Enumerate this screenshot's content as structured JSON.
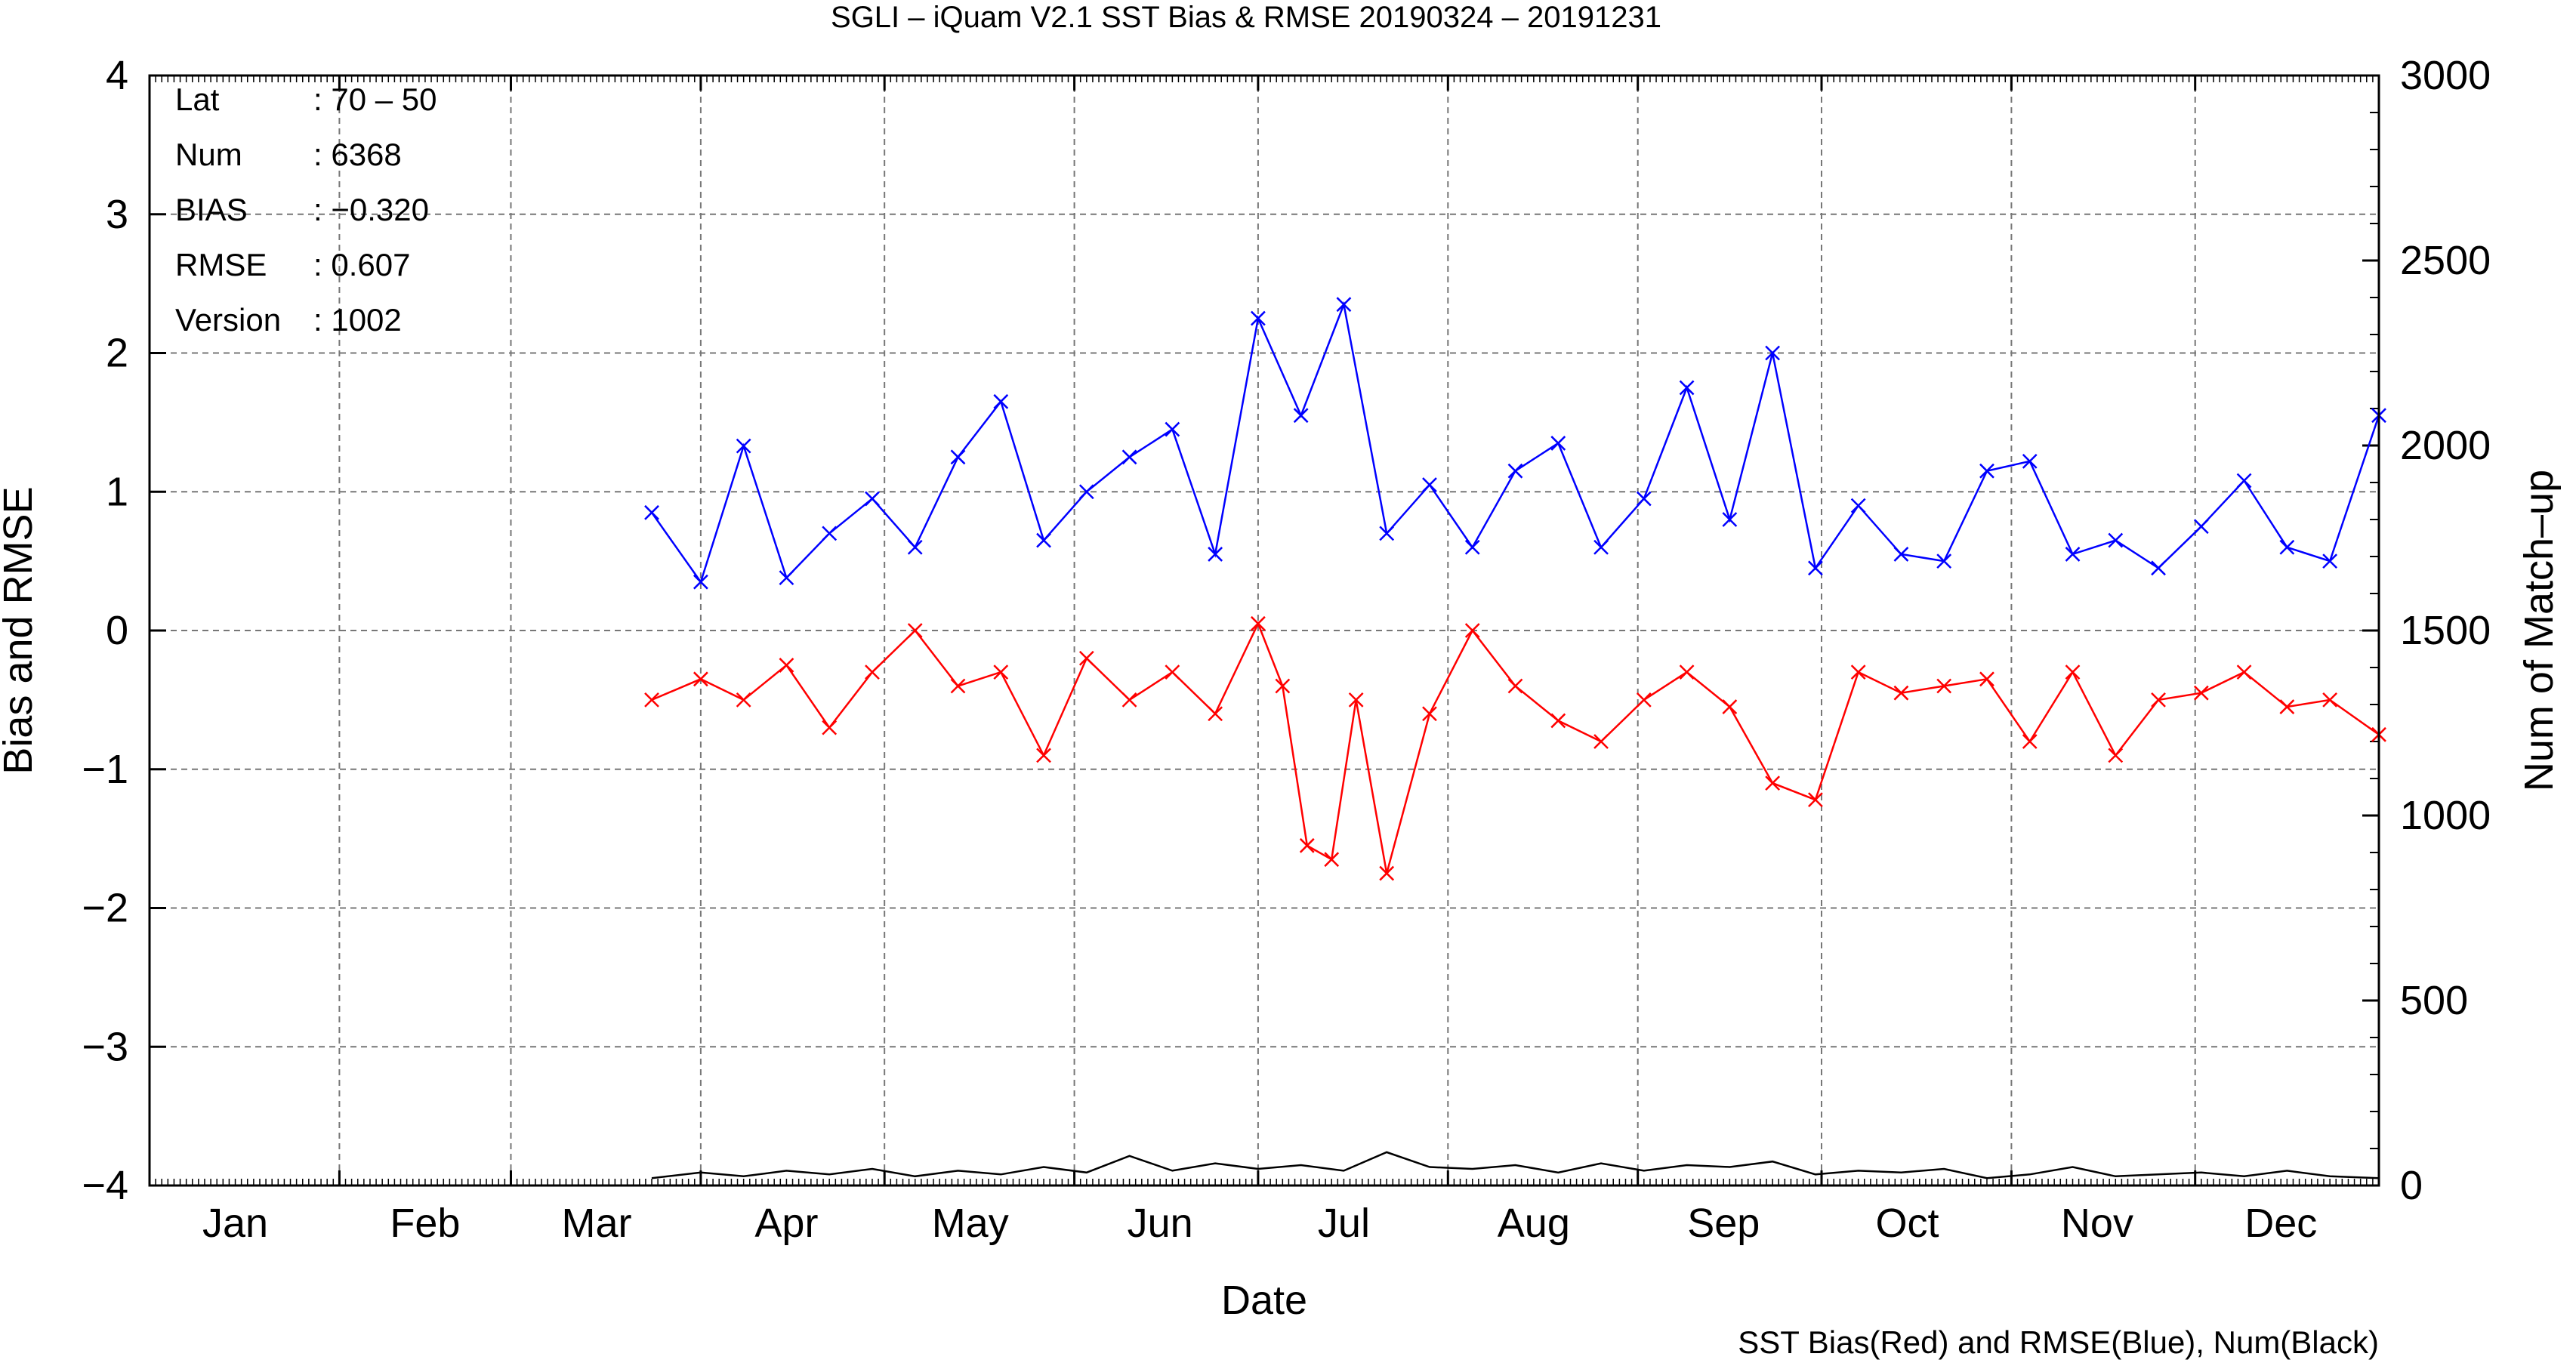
{
  "chart_data": {
    "type": "line",
    "title": "SGLI – iQuam V2.1 SST Bias & RMSE 20190324 – 20191231",
    "xlabel": "Date",
    "ylabel": "Bias and RMSE",
    "y2label": "Num of Match–up",
    "footer": "SST Bias(Red) and RMSE(Blue), Num(Black)",
    "ylim": [
      -4,
      4
    ],
    "y2lim": [
      0,
      3000
    ],
    "xlim": [
      "2019-01-01",
      "2019-12-31"
    ],
    "x_ticklabels": [
      "Jan",
      "Feb",
      "Mar",
      "Apr",
      "May",
      "Jun",
      "Jul",
      "Aug",
      "Sep",
      "Oct",
      "Nov",
      "Dec"
    ],
    "x_tick_dates": [
      "2019-01-15",
      "2019-02-15",
      "2019-03-15",
      "2019-04-15",
      "2019-05-15",
      "2019-06-15",
      "2019-07-15",
      "2019-08-15",
      "2019-09-15",
      "2019-10-15",
      "2019-11-15",
      "2019-12-15"
    ],
    "y_ticklabels": [
      "4",
      "3",
      "2",
      "1",
      "0",
      "−1",
      "−2",
      "−3",
      "−4"
    ],
    "y2_ticklabels": [
      "3000",
      "2500",
      "2000",
      "1500",
      "1000",
      "500",
      "0"
    ],
    "grid": true,
    "stats": [
      {
        "key": "Lat",
        "value": ": 70 – 50"
      },
      {
        "key": "Num",
        "value": ": 6368"
      },
      {
        "key": "BIAS",
        "value": ": −0.320"
      },
      {
        "key": "RMSE",
        "value": ": 0.607"
      },
      {
        "key": "Version",
        "value": ": 1002"
      }
    ],
    "series": [
      {
        "name": "RMSE",
        "color": "#0000ff",
        "marker": "x",
        "axis": "left",
        "x": [
          "2019-03-24",
          "2019-04-01",
          "2019-04-08",
          "2019-04-15",
          "2019-04-22",
          "2019-04-29",
          "2019-05-06",
          "2019-05-13",
          "2019-05-20",
          "2019-05-27",
          "2019-06-03",
          "2019-06-10",
          "2019-06-17",
          "2019-06-24",
          "2019-07-01",
          "2019-07-08",
          "2019-07-15",
          "2019-07-22",
          "2019-07-29",
          "2019-08-05",
          "2019-08-12",
          "2019-08-19",
          "2019-08-26",
          "2019-09-02",
          "2019-09-09",
          "2019-09-16",
          "2019-09-23",
          "2019-09-30",
          "2019-10-07",
          "2019-10-14",
          "2019-10-21",
          "2019-10-28",
          "2019-11-04",
          "2019-11-11",
          "2019-11-18",
          "2019-11-25",
          "2019-12-02",
          "2019-12-09",
          "2019-12-16",
          "2019-12-23",
          "2019-12-31"
        ],
        "y": [
          0.85,
          0.35,
          1.33,
          0.38,
          0.7,
          0.95,
          0.6,
          1.25,
          1.65,
          0.65,
          1.0,
          1.25,
          1.45,
          0.55,
          2.25,
          1.55,
          2.35,
          0.7,
          1.05,
          0.6,
          1.15,
          1.35,
          0.6,
          0.95,
          1.75,
          0.8,
          2.0,
          0.45,
          0.9,
          0.55,
          0.5,
          1.15,
          1.22,
          0.55,
          0.65,
          0.45,
          0.75,
          1.08,
          0.6,
          0.5,
          1.55
        ]
      },
      {
        "name": "Bias",
        "color": "#ff0000",
        "marker": "x",
        "axis": "left",
        "x": [
          "2019-03-24",
          "2019-04-01",
          "2019-04-08",
          "2019-04-15",
          "2019-04-22",
          "2019-04-29",
          "2019-05-06",
          "2019-05-13",
          "2019-05-20",
          "2019-05-27",
          "2019-06-03",
          "2019-06-10",
          "2019-06-17",
          "2019-06-24",
          "2019-07-01",
          "2019-07-05",
          "2019-07-09",
          "2019-07-13",
          "2019-07-17",
          "2019-07-22",
          "2019-07-29",
          "2019-08-05",
          "2019-08-12",
          "2019-08-19",
          "2019-08-26",
          "2019-09-02",
          "2019-09-09",
          "2019-09-16",
          "2019-09-23",
          "2019-09-30",
          "2019-10-07",
          "2019-10-14",
          "2019-10-21",
          "2019-10-28",
          "2019-11-04",
          "2019-11-11",
          "2019-11-18",
          "2019-11-25",
          "2019-12-02",
          "2019-12-09",
          "2019-12-16",
          "2019-12-23",
          "2019-12-31"
        ],
        "y": [
          -0.5,
          -0.35,
          -0.5,
          -0.25,
          -0.7,
          -0.3,
          0.0,
          -0.4,
          -0.3,
          -0.9,
          -0.2,
          -0.5,
          -0.3,
          -0.6,
          0.05,
          -0.4,
          -1.55,
          -1.65,
          -0.5,
          -1.75,
          -0.6,
          0.0,
          -0.4,
          -0.65,
          -0.8,
          -0.5,
          -0.3,
          -0.55,
          -1.1,
          -1.22,
          -0.3,
          -0.45,
          -0.4,
          -0.35,
          -0.8,
          -0.3,
          -0.9,
          -0.5,
          -0.45,
          -0.3,
          -0.55,
          -0.5,
          -0.75
        ]
      },
      {
        "name": "Num",
        "color": "#000000",
        "marker": "none",
        "axis": "right",
        "x": [
          "2019-03-24",
          "2019-04-01",
          "2019-04-08",
          "2019-04-15",
          "2019-04-22",
          "2019-04-29",
          "2019-05-06",
          "2019-05-13",
          "2019-05-20",
          "2019-05-27",
          "2019-06-03",
          "2019-06-10",
          "2019-06-17",
          "2019-06-24",
          "2019-07-01",
          "2019-07-08",
          "2019-07-15",
          "2019-07-22",
          "2019-07-29",
          "2019-08-05",
          "2019-08-12",
          "2019-08-19",
          "2019-08-26",
          "2019-09-02",
          "2019-09-09",
          "2019-09-16",
          "2019-09-23",
          "2019-09-30",
          "2019-10-07",
          "2019-10-14",
          "2019-10-21",
          "2019-10-28",
          "2019-11-04",
          "2019-11-11",
          "2019-11-18",
          "2019-11-25",
          "2019-12-02",
          "2019-12-09",
          "2019-12-16",
          "2019-12-23",
          "2019-12-31"
        ],
        "y": [
          20,
          35,
          25,
          40,
          30,
          45,
          25,
          40,
          30,
          50,
          35,
          80,
          40,
          60,
          45,
          55,
          40,
          90,
          50,
          45,
          55,
          35,
          60,
          40,
          55,
          50,
          65,
          30,
          40,
          35,
          45,
          20,
          30,
          50,
          25,
          30,
          35,
          25,
          40,
          25,
          20
        ]
      }
    ]
  }
}
